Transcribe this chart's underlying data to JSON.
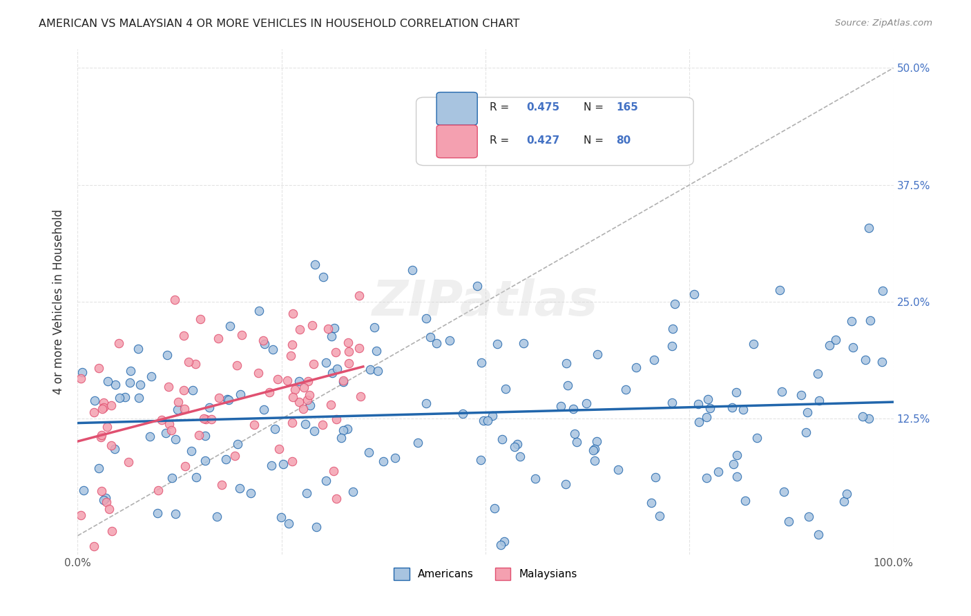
{
  "title": "AMERICAN VS MALAYSIAN 4 OR MORE VEHICLES IN HOUSEHOLD CORRELATION CHART",
  "source": "Source: ZipAtlas.com",
  "ylabel": "4 or more Vehicles in Household",
  "american_color": "#a8c4e0",
  "american_line_color": "#2166ac",
  "malaysian_color": "#f4a0b0",
  "malaysian_line_color": "#e05070",
  "trendline_color_american": "#2166ac",
  "trendline_color_malaysian": "#e05070",
  "diagonal_color": "#b0b0b0",
  "legend_american_label": "Americans",
  "legend_malaysian_label": "Malaysians",
  "R_american": 0.475,
  "N_american": 165,
  "R_malaysian": 0.427,
  "N_malaysian": 80,
  "xmin": 0.0,
  "xmax": 1.0,
  "ymin": -0.02,
  "ymax": 0.52,
  "watermark": "ZIPatlas",
  "background_color": "#ffffff",
  "grid_color": "#dddddd"
}
